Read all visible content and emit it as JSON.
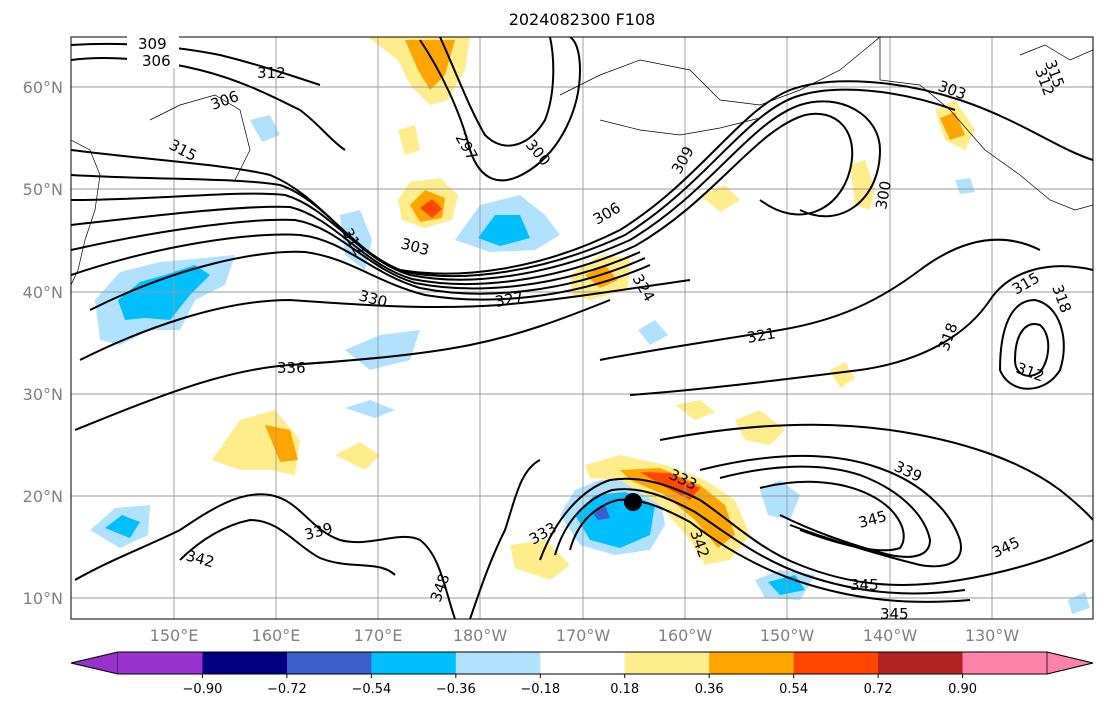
{
  "title": "2024082300 F108",
  "latitude_labels": [
    "60°N",
    "50°N",
    "40°N",
    "30°N",
    "20°N",
    "10°N"
  ],
  "longitude_labels": [
    "150°E",
    "160°E",
    "170°E",
    "180°W",
    "170°W",
    "160°W",
    "150°W",
    "140°W",
    "130°W"
  ],
  "contour_labels": [
    {
      "id": "l1",
      "text": "309"
    },
    {
      "id": "l2",
      "text": "306"
    },
    {
      "id": "l3",
      "text": "312"
    },
    {
      "id": "l4",
      "text": "306"
    },
    {
      "id": "l5",
      "text": "315"
    },
    {
      "id": "l6",
      "text": "297"
    },
    {
      "id": "l7",
      "text": "300"
    },
    {
      "id": "l8",
      "text": "309"
    },
    {
      "id": "l9",
      "text": "303"
    },
    {
      "id": "l10",
      "text": "315"
    },
    {
      "id": "l11",
      "text": "312"
    },
    {
      "id": "l12",
      "text": "300"
    },
    {
      "id": "l13",
      "text": "312"
    },
    {
      "id": "l14",
      "text": "303"
    },
    {
      "id": "l15",
      "text": "306"
    },
    {
      "id": "l16",
      "text": "330"
    },
    {
      "id": "l17",
      "text": "327"
    },
    {
      "id": "l18",
      "text": "324"
    },
    {
      "id": "l19",
      "text": "321"
    },
    {
      "id": "l20",
      "text": "318"
    },
    {
      "id": "l21",
      "text": "315"
    },
    {
      "id": "l22",
      "text": "318"
    },
    {
      "id": "l23",
      "text": "312"
    },
    {
      "id": "l24",
      "text": "336"
    },
    {
      "id": "l25",
      "text": "333"
    },
    {
      "id": "l26",
      "text": "339"
    },
    {
      "id": "l27",
      "text": "345"
    },
    {
      "id": "l28",
      "text": "345"
    },
    {
      "id": "l29",
      "text": "345"
    },
    {
      "id": "l30",
      "text": "345"
    },
    {
      "id": "l31",
      "text": "339"
    },
    {
      "id": "l32",
      "text": "342"
    },
    {
      "id": "l33",
      "text": "333"
    },
    {
      "id": "l34",
      "text": "342"
    },
    {
      "id": "l35",
      "text": "348"
    }
  ],
  "colorbar": {
    "ticks": [
      "−0.90",
      "−0.72",
      "−0.54",
      "−0.36",
      "−0.18",
      "0.18",
      "0.36",
      "0.54",
      "0.72",
      "0.90"
    ],
    "colors": {
      "under": "#9932cc",
      "b1": "#000080",
      "b2": "#3a5fcd",
      "b3": "#00bfff",
      "b4": "#b0e2ff",
      "b5": "#ffffff",
      "b6": "#ffec8b",
      "b7": "#ffa500",
      "b8": "#ff4500",
      "b9": "#b22222",
      "over": "#ff82ab"
    }
  },
  "storm_marker": {
    "name": "tropical cyclone center"
  }
}
